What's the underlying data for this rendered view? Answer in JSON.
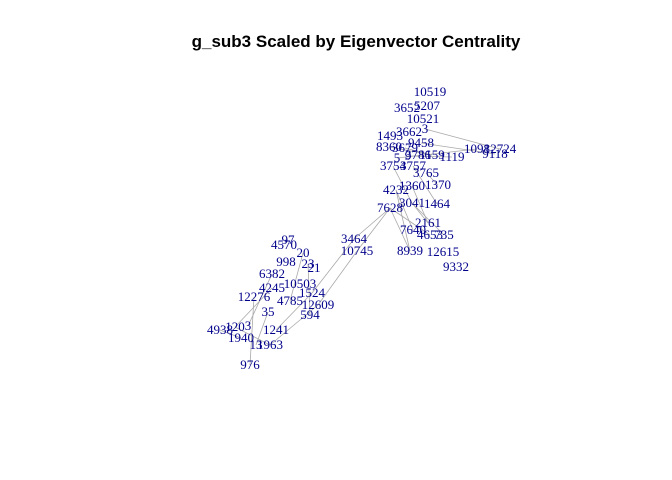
{
  "title": "g_sub3 Scaled by Eigenvector Centrality",
  "colors": {
    "label": "#00008b",
    "edge": "#a9a9a9",
    "title": "#000000",
    "background": "#ffffff"
  },
  "nodes": [
    "10519",
    "3652",
    "5207",
    "10521",
    "3662",
    "3",
    "1493",
    "8360",
    "9458",
    "3679",
    "5",
    "3786",
    "9",
    "1159",
    "1119",
    "1098",
    "12724",
    "9118",
    "3754",
    "3757",
    "3765",
    "4232",
    "1360",
    "1370",
    "3041",
    "1464",
    "7628",
    "2161",
    "7640",
    "4653",
    "735",
    "8939",
    "12615",
    "9332",
    "3464",
    "10745",
    "97",
    "4570",
    "20",
    "998",
    "23",
    "21",
    "6382",
    "10503",
    "4245",
    "1524",
    "12276",
    "4785",
    "12609",
    "35",
    "594",
    "4938",
    "120",
    "3",
    "1241",
    "1940",
    "13",
    "1963",
    "976"
  ]
}
